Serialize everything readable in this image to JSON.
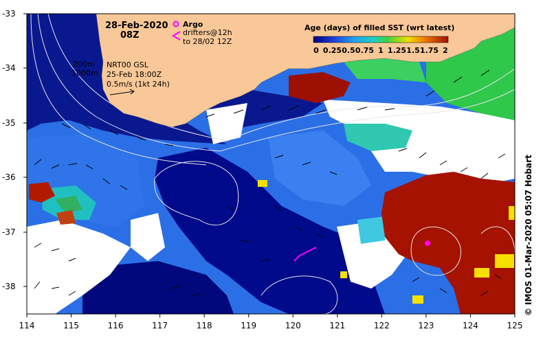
{
  "map": {
    "date": "28-Feb-2020",
    "hour": "08Z",
    "argo_label": "Argo",
    "drifters_line1": "drifters@12h",
    "drifters_line2": "to 28/02 12Z",
    "depth_200": "200m",
    "depth_1000": "1000m",
    "product": "NRT00 GSL",
    "product_time": "25-Feb 18:00Z",
    "vector_scale": "0.5m/s (1kt 24h)",
    "colorbar_title": "Age (days) of filled SST (wrt latest)",
    "colorbar_ticks": [
      "0",
      "0.25",
      "0.5",
      "0.75",
      "1",
      "1.25",
      "1.5",
      "1.75",
      "2"
    ],
    "credit": "© IMOS 01-Mar-2020 05:07 Hobart",
    "lat_labels": [
      "-33",
      "-34",
      "-35",
      "-36",
      "-37",
      "-38"
    ],
    "lon_labels": [
      "114",
      "115",
      "116",
      "117",
      "118",
      "119",
      "120",
      "121",
      "122",
      "123",
      "124",
      "125"
    ],
    "colors": {
      "land": "#f9c898",
      "age_0": "#00007f",
      "age_mid_blue": "#2b6fe6",
      "age_cyan": "#20c0e0",
      "age_green": "#2fc84a",
      "age_yellow": "#f5e000",
      "age_2": "#a51200",
      "argo": "#ff00ff"
    }
  }
}
